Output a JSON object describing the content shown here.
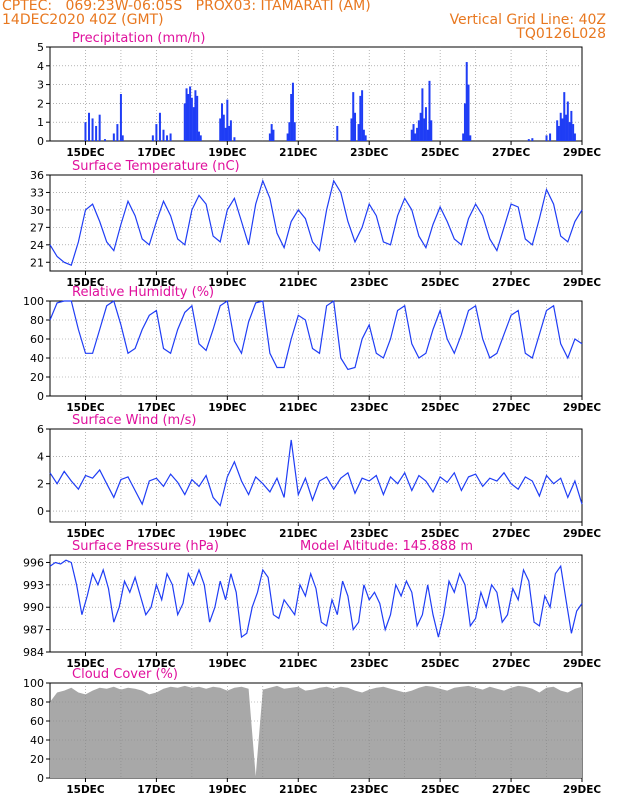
{
  "header": {
    "line1_left": "CPTEC:   069:23W-06:05S   PROX03: ITAMARATI (AM)",
    "line2_left": "14DEC2020 40Z (GMT)",
    "line2_right": "Vertical Grid Line: 40Z",
    "line3_right": "TQ0126L028"
  },
  "colors": {
    "header": "#e87820",
    "panel_title": "#e0119d",
    "precip_bars": "#1f3df5",
    "lines": "#1f3df5",
    "cloud_fill": "#a8a8a8",
    "grid": "#888888"
  },
  "chart_data": [
    {
      "id": "precip",
      "type": "bar",
      "title": "Precipitation (mm/h)",
      "ylim": [
        0,
        5
      ],
      "yticks": [
        0,
        1,
        2,
        3,
        4,
        5
      ],
      "xlim": [
        14.0,
        29.0
      ],
      "xticks": [
        "15DEC",
        "17DEC",
        "19DEC",
        "21DEC",
        "23DEC",
        "25DEC",
        "27DEC",
        "29DEC"
      ],
      "x": [
        15.0,
        15.1,
        15.2,
        15.3,
        15.4,
        15.55,
        15.8,
        15.9,
        16.0,
        16.05,
        16.9,
        17.0,
        17.1,
        17.2,
        17.3,
        17.4,
        17.8,
        17.85,
        17.9,
        17.95,
        18.0,
        18.05,
        18.1,
        18.15,
        18.2,
        18.25,
        18.8,
        18.85,
        18.9,
        18.95,
        19.0,
        19.05,
        19.1,
        19.2,
        20.2,
        20.25,
        20.3,
        20.7,
        20.75,
        20.8,
        20.85,
        20.9,
        22.1,
        22.5,
        22.55,
        22.6,
        22.7,
        22.75,
        22.8,
        22.85,
        22.9,
        24.2,
        24.25,
        24.3,
        24.35,
        24.4,
        24.45,
        24.5,
        24.55,
        24.6,
        24.65,
        24.7,
        24.75,
        25.65,
        25.7,
        25.75,
        25.8,
        25.85,
        27.5,
        27.6,
        28.0,
        28.1,
        28.3,
        28.35,
        28.4,
        28.45,
        28.5,
        28.55,
        28.6,
        28.65,
        28.7,
        28.75,
        28.8
      ],
      "values": [
        1.0,
        1.5,
        1.2,
        0.8,
        1.4,
        0.1,
        0.4,
        0.9,
        2.5,
        0.3,
        0.3,
        0.9,
        1.5,
        0.6,
        0.3,
        0.4,
        2.0,
        2.8,
        2.5,
        2.9,
        2.3,
        1.8,
        2.7,
        2.4,
        0.5,
        0.3,
        1.2,
        2.0,
        1.4,
        0.7,
        2.2,
        0.8,
        1.1,
        0.2,
        0.4,
        0.9,
        0.6,
        0.4,
        1.0,
        2.5,
        3.1,
        1.0,
        0.8,
        1.2,
        2.6,
        1.5,
        0.9,
        2.4,
        2.7,
        0.6,
        0.3,
        0.6,
        0.9,
        0.4,
        0.7,
        1.1,
        1.5,
        2.8,
        1.2,
        1.8,
        0.6,
        3.2,
        1.1,
        0.4,
        2.0,
        4.2,
        3.0,
        0.3,
        0.1,
        0.15,
        0.3,
        0.4,
        1.1,
        0.8,
        1.5,
        1.2,
        2.6,
        1.4,
        2.1,
        1.0,
        1.6,
        0.9,
        0.4
      ]
    },
    {
      "id": "temp",
      "type": "line",
      "title": "Surface Temperature (nC)",
      "ylim": [
        19.5,
        36
      ],
      "yticks": [
        21,
        24,
        27,
        30,
        33,
        36
      ],
      "xlim": [
        14.0,
        29.0
      ],
      "xticks": [
        "15DEC",
        "17DEC",
        "19DEC",
        "21DEC",
        "23DEC",
        "25DEC",
        "27DEC",
        "29DEC"
      ],
      "x": [
        14.0,
        14.2,
        14.4,
        14.6,
        14.8,
        15.0,
        15.2,
        15.4,
        15.6,
        15.8,
        16.0,
        16.2,
        16.4,
        16.6,
        16.8,
        17.0,
        17.2,
        17.4,
        17.6,
        17.8,
        18.0,
        18.2,
        18.4,
        18.6,
        18.8,
        19.0,
        19.2,
        19.4,
        19.6,
        19.8,
        20.0,
        20.2,
        20.4,
        20.6,
        20.8,
        21.0,
        21.2,
        21.4,
        21.6,
        21.8,
        22.0,
        22.2,
        22.4,
        22.6,
        22.8,
        23.0,
        23.2,
        23.4,
        23.6,
        23.8,
        24.0,
        24.2,
        24.4,
        24.6,
        24.8,
        25.0,
        25.2,
        25.4,
        25.6,
        25.8,
        26.0,
        26.2,
        26.4,
        26.6,
        26.8,
        27.0,
        27.2,
        27.4,
        27.6,
        27.8,
        28.0,
        28.2,
        28.4,
        28.6,
        28.8,
        29.0
      ],
      "values": [
        24.0,
        22.0,
        21.0,
        20.5,
        24.5,
        30.0,
        31.0,
        28.0,
        24.5,
        23.0,
        27.5,
        31.5,
        29.0,
        25.0,
        24.0,
        28.0,
        31.5,
        29.0,
        25.0,
        24.0,
        30.0,
        32.5,
        31.0,
        25.5,
        24.5,
        30.0,
        32.0,
        28.0,
        24.0,
        31.0,
        35.0,
        32.0,
        26.0,
        23.5,
        28.0,
        30.0,
        28.5,
        24.5,
        23.0,
        30.0,
        35.0,
        33.0,
        28.0,
        24.5,
        27.0,
        31.0,
        29.0,
        24.5,
        24.0,
        29.0,
        32.0,
        30.0,
        25.5,
        23.5,
        27.5,
        30.5,
        28.0,
        25.0,
        24.0,
        28.5,
        31.0,
        29.0,
        25.0,
        23.0,
        27.0,
        31.0,
        30.5,
        25.0,
        24.0,
        28.5,
        33.5,
        31.0,
        25.5,
        24.5,
        28.0,
        30.0
      ]
    },
    {
      "id": "rh",
      "type": "line",
      "title": "Relative Humidity (%)",
      "ylim": [
        0,
        100
      ],
      "yticks": [
        0,
        20,
        40,
        60,
        80,
        100
      ],
      "xlim": [
        14.0,
        29.0
      ],
      "xticks": [
        "15DEC",
        "17DEC",
        "19DEC",
        "21DEC",
        "23DEC",
        "25DEC",
        "27DEC",
        "29DEC"
      ],
      "x": [
        14.0,
        14.2,
        14.4,
        14.6,
        14.8,
        15.0,
        15.2,
        15.4,
        15.6,
        15.8,
        16.0,
        16.2,
        16.4,
        16.6,
        16.8,
        17.0,
        17.2,
        17.4,
        17.6,
        17.8,
        18.0,
        18.2,
        18.4,
        18.6,
        18.8,
        19.0,
        19.2,
        19.4,
        19.6,
        19.8,
        20.0,
        20.2,
        20.4,
        20.6,
        20.8,
        21.0,
        21.2,
        21.4,
        21.6,
        21.8,
        22.0,
        22.2,
        22.4,
        22.6,
        22.8,
        23.0,
        23.2,
        23.4,
        23.6,
        23.8,
        24.0,
        24.2,
        24.4,
        24.6,
        24.8,
        25.0,
        25.2,
        25.4,
        25.6,
        25.8,
        26.0,
        26.2,
        26.4,
        26.6,
        26.8,
        27.0,
        27.2,
        27.4,
        27.6,
        27.8,
        28.0,
        28.2,
        28.4,
        28.6,
        28.8,
        29.0
      ],
      "values": [
        80,
        98,
        100,
        100,
        70,
        45,
        45,
        70,
        95,
        100,
        75,
        45,
        50,
        70,
        85,
        90,
        50,
        45,
        70,
        88,
        95,
        55,
        48,
        70,
        95,
        100,
        58,
        45,
        78,
        98,
        100,
        45,
        30,
        30,
        60,
        85,
        80,
        50,
        45,
        95,
        100,
        40,
        28,
        30,
        60,
        75,
        45,
        40,
        60,
        90,
        95,
        55,
        40,
        45,
        70,
        90,
        60,
        45,
        65,
        90,
        95,
        60,
        40,
        45,
        65,
        85,
        90,
        45,
        40,
        65,
        90,
        95,
        55,
        40,
        60,
        55
      ]
    },
    {
      "id": "wind",
      "type": "line",
      "title": "Surface Wind (m/s)",
      "ylim": [
        -0.8,
        6
      ],
      "yticks": [
        0,
        2,
        4,
        6
      ],
      "xlim": [
        14.0,
        29.0
      ],
      "xticks": [
        "15DEC",
        "17DEC",
        "19DEC",
        "21DEC",
        "23DEC",
        "25DEC",
        "27DEC",
        "29DEC"
      ],
      "x": [
        14.0,
        14.2,
        14.4,
        14.6,
        14.8,
        15.0,
        15.2,
        15.4,
        15.6,
        15.8,
        16.0,
        16.2,
        16.4,
        16.6,
        16.8,
        17.0,
        17.2,
        17.4,
        17.6,
        17.8,
        18.0,
        18.2,
        18.4,
        18.6,
        18.8,
        19.0,
        19.2,
        19.4,
        19.6,
        19.8,
        20.0,
        20.2,
        20.4,
        20.6,
        20.8,
        21.0,
        21.2,
        21.4,
        21.6,
        21.8,
        22.0,
        22.2,
        22.4,
        22.6,
        22.8,
        23.0,
        23.2,
        23.4,
        23.6,
        23.8,
        24.0,
        24.2,
        24.4,
        24.6,
        24.8,
        25.0,
        25.2,
        25.4,
        25.6,
        25.8,
        26.0,
        26.2,
        26.4,
        26.6,
        26.8,
        27.0,
        27.2,
        27.4,
        27.6,
        27.8,
        28.0,
        28.2,
        28.4,
        28.6,
        28.8,
        29.0
      ],
      "values": [
        2.8,
        2.0,
        2.9,
        2.2,
        1.6,
        2.6,
        2.4,
        3.0,
        2.0,
        1.0,
        2.3,
        2.5,
        1.5,
        0.5,
        2.2,
        2.4,
        1.8,
        2.7,
        2.1,
        1.2,
        2.3,
        1.8,
        2.6,
        1.0,
        0.4,
        2.5,
        3.6,
        2.2,
        1.2,
        2.5,
        2.0,
        1.4,
        2.4,
        1.0,
        5.2,
        1.2,
        2.4,
        0.8,
        2.2,
        2.5,
        1.6,
        2.4,
        2.8,
        1.3,
        2.4,
        2.2,
        2.6,
        1.2,
        2.5,
        2.0,
        2.8,
        1.5,
        2.6,
        2.2,
        1.4,
        2.5,
        2.1,
        2.8,
        1.5,
        2.5,
        2.7,
        1.8,
        2.4,
        2.2,
        2.8,
        2.0,
        1.6,
        2.5,
        2.2,
        1.1,
        2.6,
        2.0,
        2.4,
        1.0,
        2.2,
        0.5
      ]
    },
    {
      "id": "press",
      "type": "line",
      "title": "Surface Pressure (hPa)",
      "subtitle": "Model Altitude: 145.888 m",
      "ylim": [
        984,
        997
      ],
      "yticks": [
        984,
        987,
        990,
        993,
        996
      ],
      "xlim": [
        14.0,
        29.0
      ],
      "xticks": [
        "15DEC",
        "17DEC",
        "19DEC",
        "21DEC",
        "23DEC",
        "25DEC",
        "27DEC",
        "29DEC"
      ],
      "x": [
        14.0,
        14.15,
        14.3,
        14.45,
        14.6,
        14.75,
        14.9,
        15.05,
        15.2,
        15.35,
        15.5,
        15.65,
        15.8,
        15.95,
        16.1,
        16.25,
        16.4,
        16.55,
        16.7,
        16.85,
        17.0,
        17.15,
        17.3,
        17.45,
        17.6,
        17.75,
        17.9,
        18.05,
        18.2,
        18.35,
        18.5,
        18.65,
        18.8,
        18.95,
        19.1,
        19.25,
        19.4,
        19.55,
        19.7,
        19.85,
        20.0,
        20.15,
        20.3,
        20.45,
        20.6,
        20.75,
        20.9,
        21.05,
        21.2,
        21.35,
        21.5,
        21.65,
        21.8,
        21.95,
        22.1,
        22.25,
        22.4,
        22.55,
        22.7,
        22.85,
        23.0,
        23.15,
        23.3,
        23.45,
        23.6,
        23.75,
        23.9,
        24.05,
        24.2,
        24.35,
        24.5,
        24.65,
        24.8,
        24.95,
        25.1,
        25.25,
        25.4,
        25.55,
        25.7,
        25.85,
        26.0,
        26.15,
        26.3,
        26.45,
        26.6,
        26.75,
        26.9,
        27.05,
        27.2,
        27.35,
        27.5,
        27.65,
        27.8,
        27.95,
        28.1,
        28.25,
        28.4,
        28.55,
        28.7,
        28.85,
        29.0
      ],
      "values": [
        995.5,
        996.0,
        995.8,
        996.3,
        996.0,
        993.0,
        989.0,
        991.5,
        994.5,
        993.0,
        995.0,
        992.5,
        988.0,
        990.0,
        993.5,
        992.0,
        994.0,
        991.5,
        989.0,
        990.0,
        993.0,
        991.0,
        994.5,
        993.0,
        989.0,
        990.5,
        994.5,
        993.0,
        995.0,
        993.0,
        988.0,
        990.0,
        993.5,
        991.0,
        994.5,
        992.0,
        986.0,
        986.5,
        990.0,
        992.0,
        995.0,
        994.0,
        989.0,
        988.5,
        991.0,
        990.0,
        989.0,
        993.0,
        991.5,
        994.5,
        992.5,
        988.0,
        987.5,
        991.0,
        989.0,
        993.5,
        991.5,
        987.0,
        988.0,
        993.0,
        991.0,
        992.0,
        990.5,
        987.0,
        989.0,
        993.0,
        991.5,
        993.5,
        992.0,
        987.5,
        989.0,
        993.0,
        989.0,
        986.0,
        989.0,
        993.5,
        992.0,
        994.5,
        993.0,
        987.5,
        988.5,
        992.0,
        990.0,
        993.0,
        992.0,
        988.0,
        989.0,
        992.5,
        991.0,
        995.0,
        993.5,
        988.0,
        987.5,
        991.5,
        990.0,
        994.5,
        995.5,
        991.0,
        986.5,
        989.5,
        990.5
      ]
    },
    {
      "id": "cloud",
      "type": "area",
      "title": "Cloud Cover (%)",
      "ylim": [
        0,
        100
      ],
      "yticks": [
        0,
        20,
        40,
        60,
        80,
        100
      ],
      "xlim": [
        14.0,
        29.0
      ],
      "xticks": [
        "15DEC",
        "17DEC",
        "19DEC",
        "21DEC",
        "23DEC",
        "25DEC",
        "27DEC",
        "29DEC"
      ],
      "x": [
        14.0,
        14.2,
        14.4,
        14.6,
        14.8,
        15.0,
        15.2,
        15.4,
        15.6,
        15.8,
        16.0,
        16.2,
        16.4,
        16.6,
        16.8,
        17.0,
        17.2,
        17.4,
        17.6,
        17.8,
        18.0,
        18.2,
        18.4,
        18.6,
        18.8,
        19.0,
        19.2,
        19.4,
        19.6,
        19.8,
        20.0,
        20.2,
        20.4,
        20.6,
        20.8,
        21.0,
        21.2,
        21.4,
        21.6,
        21.8,
        22.0,
        22.2,
        22.4,
        22.6,
        22.8,
        23.0,
        23.2,
        23.4,
        23.6,
        23.8,
        24.0,
        24.2,
        24.4,
        24.6,
        24.8,
        25.0,
        25.2,
        25.4,
        25.6,
        25.8,
        26.0,
        26.2,
        26.4,
        26.6,
        26.8,
        27.0,
        27.2,
        27.4,
        27.6,
        27.8,
        28.0,
        28.2,
        28.4,
        28.6,
        28.8,
        29.0
      ],
      "values": [
        80,
        90,
        92,
        95,
        90,
        88,
        92,
        95,
        94,
        96,
        93,
        95,
        94,
        92,
        88,
        90,
        94,
        96,
        95,
        97,
        95,
        96,
        94,
        96,
        95,
        92,
        95,
        96,
        94,
        2,
        93,
        95,
        97,
        94,
        95,
        96,
        92,
        93,
        95,
        96,
        94,
        96,
        95,
        92,
        90,
        93,
        95,
        96,
        94,
        92,
        90,
        92,
        95,
        97,
        96,
        94,
        92,
        95,
        96,
        97,
        95,
        93,
        96,
        94,
        92,
        95,
        97,
        96,
        94,
        90,
        95,
        96,
        92,
        90,
        94,
        96
      ]
    }
  ]
}
